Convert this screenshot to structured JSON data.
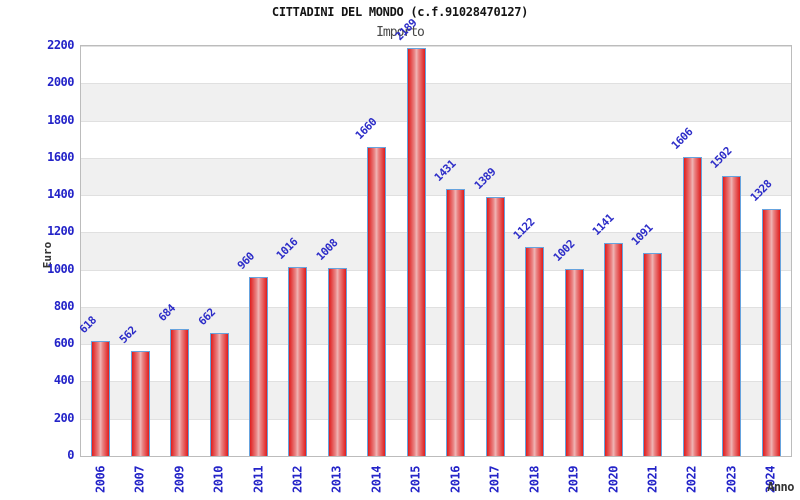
{
  "chart_data": {
    "type": "bar",
    "title": "CITTADINI DEL MONDO (c.f.91028470127)",
    "subtitle": "Importo",
    "xlabel": "Anno",
    "ylabel": "Euro",
    "categories": [
      "2006",
      "2007",
      "2009",
      "2010",
      "2011",
      "2012",
      "2013",
      "2014",
      "2015",
      "2016",
      "2017",
      "2018",
      "2019",
      "2020",
      "2021",
      "2022",
      "2023",
      "2024"
    ],
    "values": [
      618,
      562,
      684,
      662,
      960,
      1016,
      1008,
      1660,
      2189,
      1431,
      1389,
      1122,
      1002,
      1141,
      1091,
      1606,
      1502,
      1328
    ],
    "ylim": [
      0,
      2200
    ],
    "ytick_step": 200,
    "grid": "horizontal-bands-alternating",
    "legend": "none",
    "colors": {
      "axis_text": "#2323c8",
      "value_label": "#2c2cc8",
      "bar_edge": "#df1d1d",
      "bar_mid": "#ea8585",
      "bar_center": "#f0b6b6",
      "bar_border": "#66a3de",
      "band": "#f0f0f0",
      "gridline": "#e0e0e0",
      "plot_border": "#bcbcbc",
      "title_text": "#141414",
      "subtitle_text": "#474747",
      "axis_title_text": "#333333",
      "background": "#ffffff"
    }
  }
}
